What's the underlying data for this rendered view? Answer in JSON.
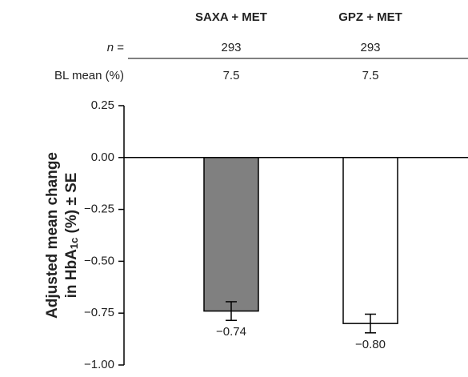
{
  "chart_data": {
    "type": "bar",
    "categories": [
      "SAXA + MET",
      "GPZ + MET"
    ],
    "values": [
      -0.74,
      -0.8
    ],
    "errors": [
      0.045,
      0.045
    ],
    "value_labels": [
      "−0.74",
      "−0.80"
    ],
    "colors": [
      "#808080",
      "#ffffff"
    ],
    "y_label": [
      "Adjusted mean change",
      "in HbA",
      "1c",
      " (%) ± SE"
    ],
    "ylim": [
      -1.0,
      0.25
    ],
    "yticks": [
      {
        "value": 0.25,
        "label": "0.25"
      },
      {
        "value": 0.0,
        "label": "0.00"
      },
      {
        "value": -0.25,
        "label": "−0.25"
      },
      {
        "value": -0.5,
        "label": "−0.50"
      },
      {
        "value": -0.75,
        "label": "−0.75"
      },
      {
        "value": -1.0,
        "label": "−1.00"
      }
    ],
    "table": {
      "rows": [
        {
          "label": [
            "n",
            " ="
          ],
          "values": [
            293,
            293
          ]
        },
        {
          "label": [
            "BL mean (%)"
          ],
          "values": [
            7.5,
            7.5
          ]
        }
      ]
    }
  }
}
